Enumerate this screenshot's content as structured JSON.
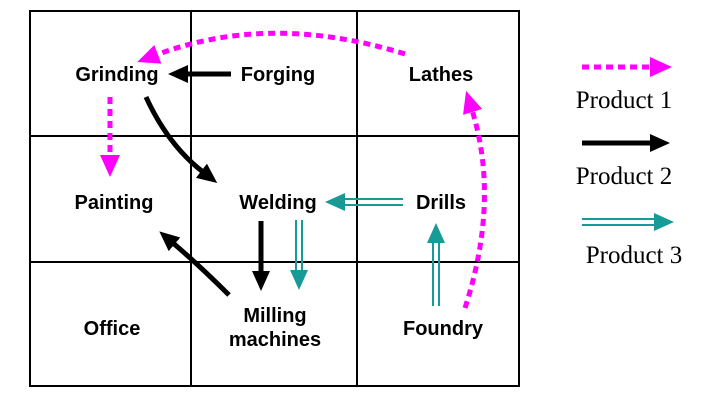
{
  "departments": {
    "grinding": "Grinding",
    "forging": "Forging",
    "lathes": "Lathes",
    "painting": "Painting",
    "welding": "Welding",
    "drills": "Drills",
    "office": "Office",
    "milling_line1": "Milling",
    "milling_line2": "machines",
    "foundry": "Foundry"
  },
  "legend": {
    "product1": "Product 1",
    "product2": "Product 2",
    "product3": "Product 3"
  },
  "colors": {
    "product1": "#ff00ff",
    "product2": "#000000",
    "product3": "#179b96",
    "grid": "#000000"
  },
  "flows": [
    {
      "product": "Product 1",
      "from": "Foundry",
      "to": "Lathes"
    },
    {
      "product": "Product 1",
      "from": "Lathes",
      "to": "Grinding"
    },
    {
      "product": "Product 1",
      "from": "Grinding",
      "to": "Painting"
    },
    {
      "product": "Product 2",
      "from": "Forging",
      "to": "Grinding"
    },
    {
      "product": "Product 2",
      "from": "Grinding",
      "to": "Welding"
    },
    {
      "product": "Product 2",
      "from": "Welding",
      "to": "Milling machines"
    },
    {
      "product": "Product 2",
      "from": "Milling machines",
      "to": "Painting"
    },
    {
      "product": "Product 3",
      "from": "Foundry",
      "to": "Drills"
    },
    {
      "product": "Product 3",
      "from": "Drills",
      "to": "Welding"
    },
    {
      "product": "Product 3",
      "from": "Welding",
      "to": "Milling machines"
    }
  ]
}
